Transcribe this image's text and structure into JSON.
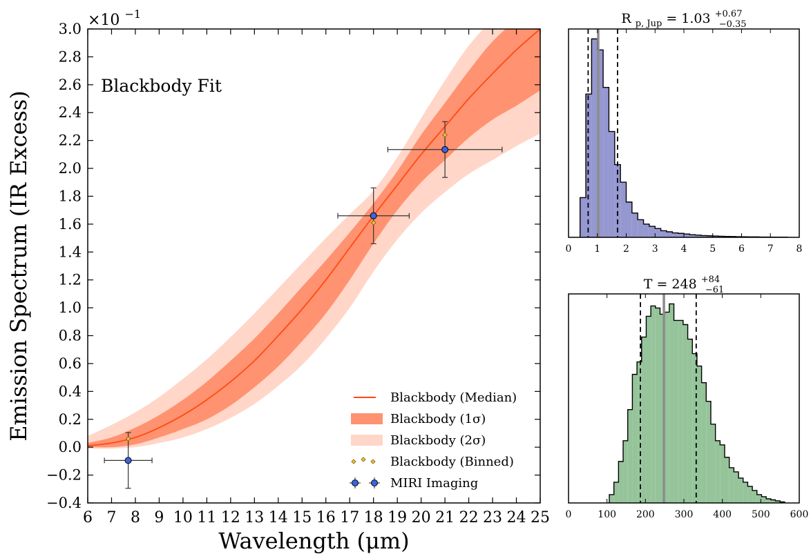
{
  "chart_data": [
    {
      "type": "line",
      "annotation": "Blackbody Fit",
      "xlabel": "Wavelength (μm)",
      "ylabel": "Emission Spectrum (IR Excess)",
      "y_multiplier": "×10",
      "y_multiplier_exp": "−1",
      "xlim": [
        6,
        25
      ],
      "ylim": [
        -0.4,
        3.0
      ],
      "x_ticks": [
        6,
        7,
        8,
        9,
        10,
        11,
        12,
        13,
        14,
        15,
        16,
        17,
        18,
        19,
        20,
        21,
        22,
        23,
        24,
        25
      ],
      "x_tick_labels": [
        "6",
        "7",
        "8",
        "9",
        "10",
        "11",
        "12",
        "13",
        "14",
        "15",
        "16",
        "17",
        "18",
        "19",
        "20",
        "21",
        "22",
        "23",
        "24",
        "25"
      ],
      "y_ticks": [
        -0.4,
        -0.2,
        0.0,
        0.2,
        0.4,
        0.6,
        0.8,
        1.0,
        1.2,
        1.4,
        1.6,
        1.8,
        2.0,
        2.2,
        2.4,
        2.6,
        2.8,
        3.0
      ],
      "y_tick_labels": [
        "−0.4",
        "−0.2",
        "0.0",
        "0.2",
        "0.4",
        "0.6",
        "0.8",
        "1.0",
        "1.2",
        "1.4",
        "1.6",
        "1.8",
        "2.0",
        "2.2",
        "2.4",
        "2.6",
        "2.8",
        "3.0"
      ],
      "grid": false,
      "legend_position": "bottom-right",
      "x": [
        6,
        7,
        8,
        9,
        10,
        11,
        12,
        13,
        14,
        15,
        16,
        17,
        18,
        19,
        20,
        21,
        22,
        23,
        24,
        25
      ],
      "median": [
        0.01,
        0.03,
        0.07,
        0.14,
        0.23,
        0.34,
        0.47,
        0.62,
        0.8,
        0.99,
        1.2,
        1.43,
        1.66,
        1.88,
        2.1,
        2.3,
        2.5,
        2.68,
        2.85,
        3.0
      ],
      "sigma1_low": [
        0.0,
        0.0,
        0.02,
        0.07,
        0.13,
        0.2,
        0.3,
        0.43,
        0.58,
        0.76,
        0.96,
        1.2,
        1.46,
        1.7,
        1.9,
        2.06,
        2.22,
        2.35,
        2.45,
        2.56
      ],
      "sigma1_high": [
        0.03,
        0.07,
        0.14,
        0.23,
        0.34,
        0.47,
        0.62,
        0.78,
        0.96,
        1.15,
        1.34,
        1.54,
        1.75,
        1.98,
        2.24,
        2.47,
        2.7,
        2.91,
        3.05,
        3.05
      ],
      "sigma2_low": [
        -0.01,
        -0.01,
        0.0,
        0.03,
        0.07,
        0.13,
        0.21,
        0.31,
        0.44,
        0.59,
        0.78,
        1.0,
        1.26,
        1.49,
        1.68,
        1.83,
        1.96,
        2.06,
        2.16,
        2.25
      ],
      "sigma2_high": [
        0.08,
        0.16,
        0.25,
        0.36,
        0.49,
        0.63,
        0.79,
        0.96,
        1.14,
        1.32,
        1.5,
        1.67,
        1.84,
        2.08,
        2.36,
        2.63,
        2.88,
        3.05,
        3.05,
        3.05
      ],
      "binned": {
        "x": [
          7.7,
          18.0,
          21.0
        ],
        "y": [
          0.06,
          1.61,
          2.24
        ]
      },
      "miri": {
        "x": [
          7.7,
          18.0,
          21.0
        ],
        "y": [
          -0.095,
          1.66,
          2.135
        ],
        "xerr": [
          1.0,
          1.5,
          2.4
        ],
        "yerr": [
          0.2,
          0.2,
          0.2
        ]
      },
      "legend": [
        {
          "label": "Blackbody (Median)",
          "style": "line"
        },
        {
          "label": "Blackbody (1σ)",
          "style": "band1"
        },
        {
          "label": "Blackbody (2σ)",
          "style": "band2"
        },
        {
          "label": "Blackbody (Binned)",
          "style": "diamonds"
        },
        {
          "label": "MIRI Imaging",
          "style": "errpoints"
        }
      ]
    },
    {
      "type": "histogram",
      "title_base": "R",
      "title_sub": "p, Jup",
      "title_value": " = 1.03",
      "title_plus": "+0.67",
      "title_minus": "−0.35",
      "xlim": [
        0,
        8
      ],
      "x_ticks": [
        0,
        1,
        2,
        3,
        4,
        5,
        6,
        7,
        8
      ],
      "x_tick_labels": [
        "0",
        "1",
        "2",
        "3",
        "4",
        "5",
        "6",
        "7",
        "8"
      ],
      "bin_width": 0.2,
      "bin_start": 0.4,
      "counts": [
        18,
        65,
        90,
        85,
        68,
        48,
        33,
        25,
        16,
        11,
        8,
        6,
        5,
        4,
        3,
        2.5,
        2,
        1.8,
        1.5,
        1.2,
        1.0,
        0.8,
        0.7,
        0.6,
        0.5,
        0.4,
        0.35,
        0.3,
        0.25,
        0.2,
        0.2,
        0.15,
        0.15,
        0.1,
        0.1,
        0.1
      ],
      "median": 1.03,
      "lower": 0.68,
      "upper": 1.7,
      "color": "#9597d0"
    },
    {
      "type": "histogram",
      "title_base": "T",
      "title_value": " = 248",
      "title_plus": "+84",
      "title_minus": "−61",
      "xlim": [
        0,
        600
      ],
      "x_ticks": [
        0,
        100,
        200,
        300,
        400,
        500,
        600
      ],
      "x_tick_labels": [
        "0",
        "100",
        "200",
        "300",
        "400",
        "500",
        "600"
      ],
      "bin_width": 12,
      "bin_start": 106,
      "counts": [
        4,
        10,
        20,
        30,
        45,
        62,
        68,
        80,
        90,
        95,
        94,
        91,
        92,
        96,
        88,
        88,
        86,
        79,
        72,
        66,
        58,
        49,
        38,
        30,
        28,
        22,
        17,
        15,
        12,
        10,
        8,
        6,
        4,
        3,
        2,
        1.5,
        1,
        0.5
      ],
      "median": 248,
      "lower": 187,
      "upper": 332,
      "color": "#96c49a"
    }
  ]
}
